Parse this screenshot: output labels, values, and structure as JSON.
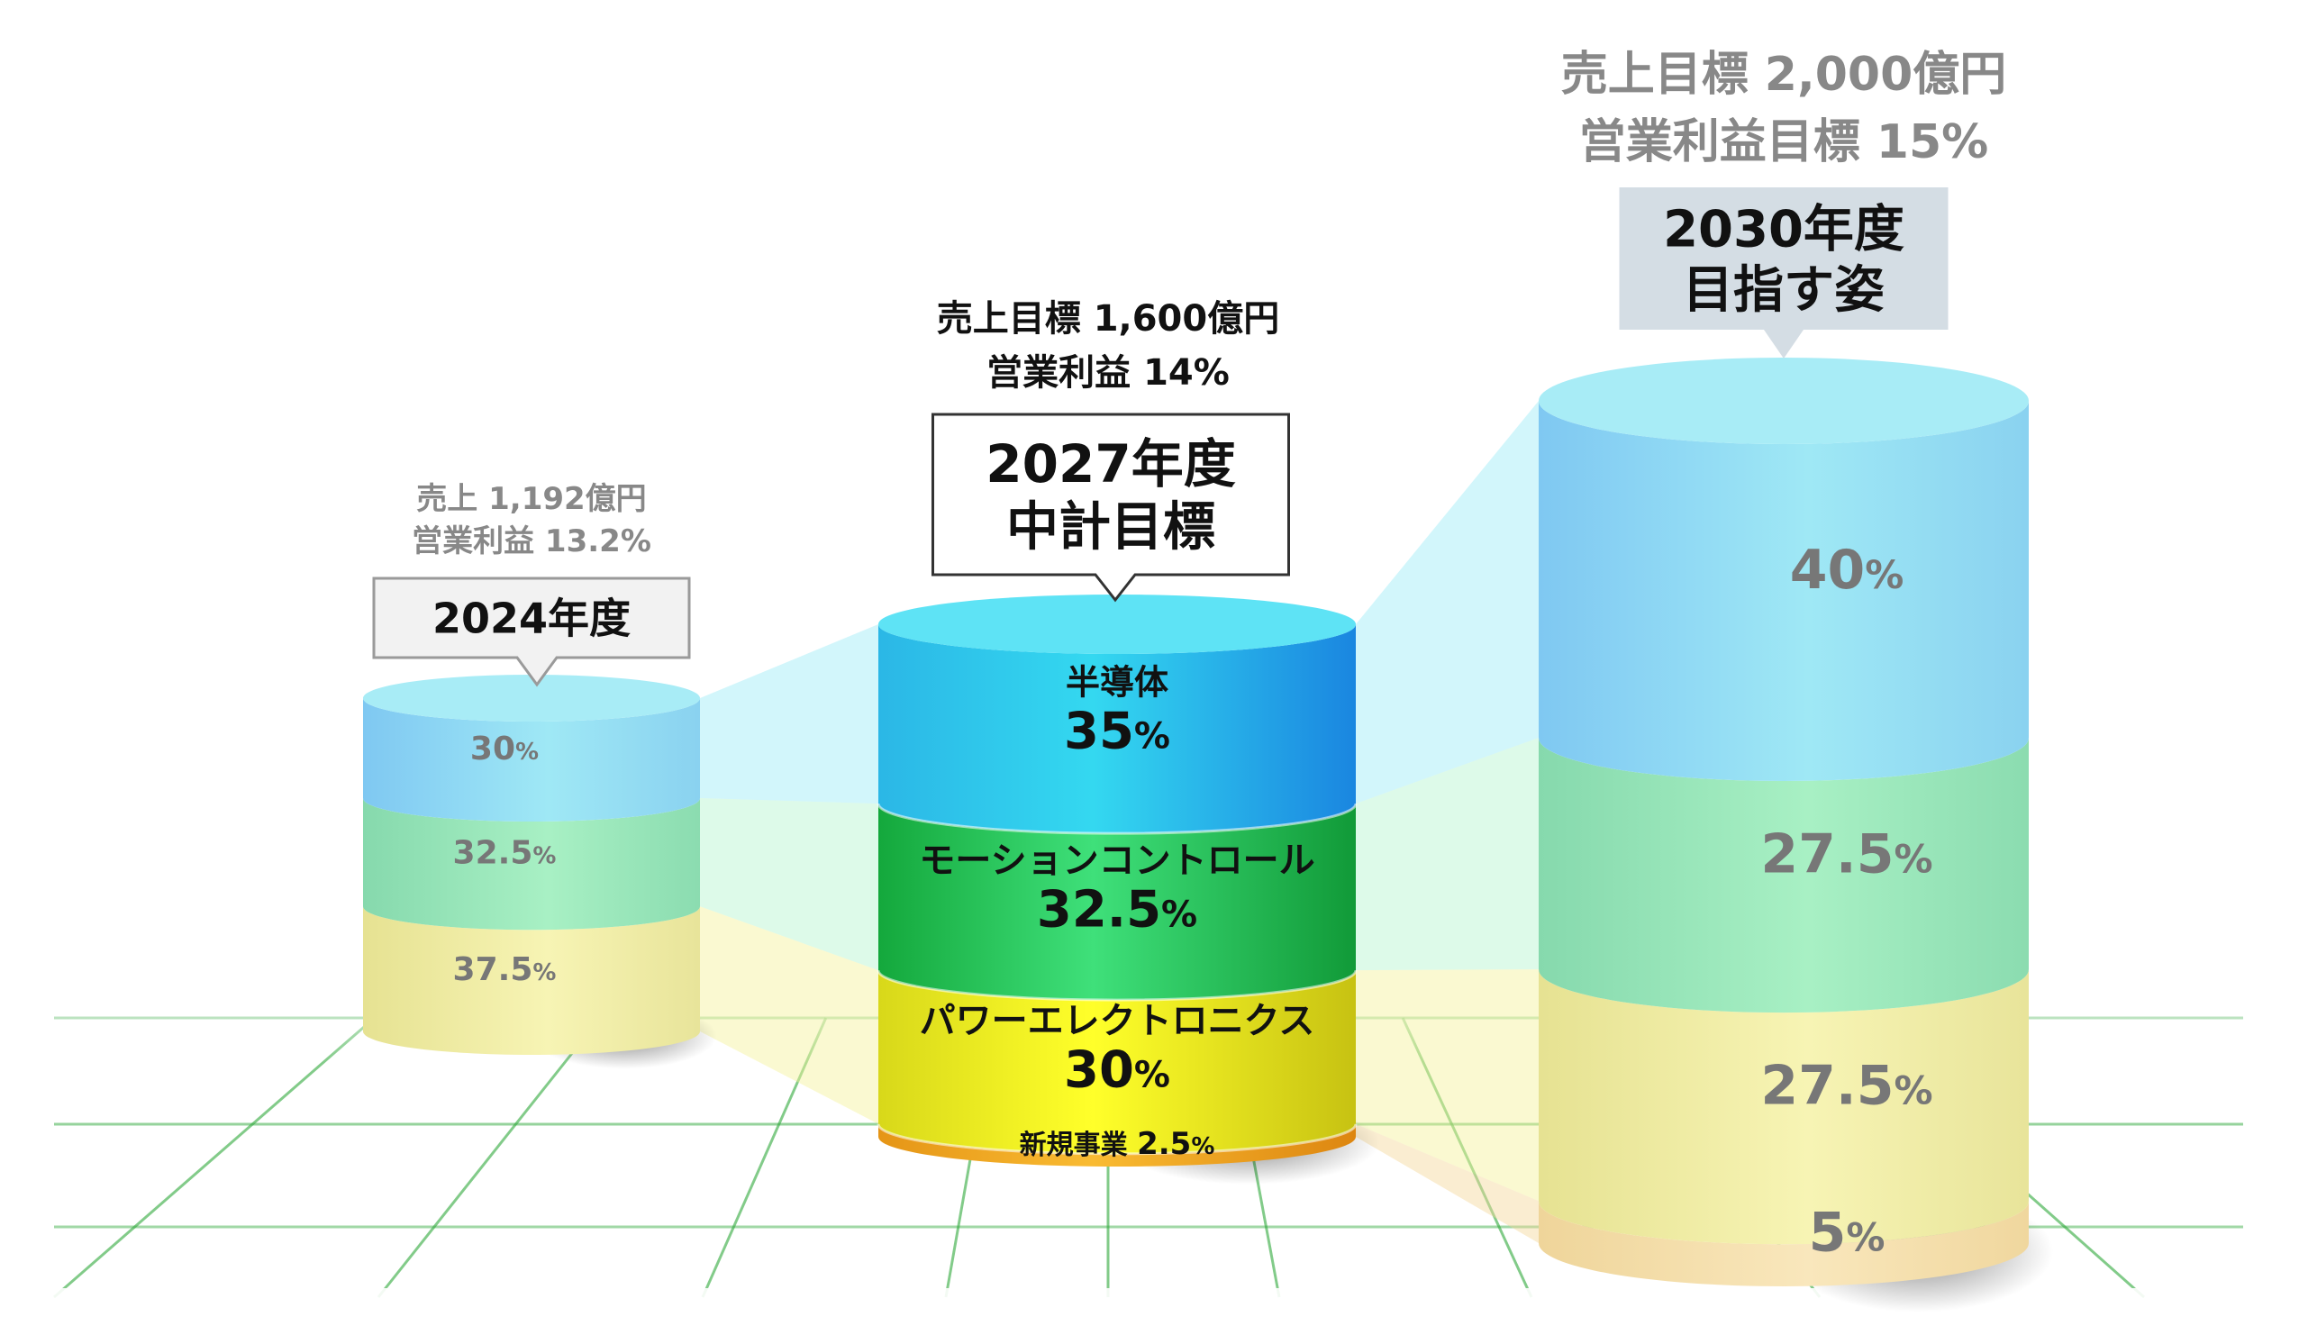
{
  "chart_data": {
    "type": "bar",
    "subtype": "stacked-cylinder",
    "series_order": [
      "semiconductor",
      "motion_control",
      "power_electronics",
      "new_business"
    ],
    "cylinders": [
      {
        "id": "fy2024",
        "label": "2024年度",
        "headline": [
          "売上 1,192億円",
          "営業利益 13.2%"
        ],
        "segments": [
          {
            "key": "power_electronics",
            "value": 37.5,
            "label": "37.5",
            "unit": "%"
          },
          {
            "key": "motion_control",
            "value": 32.5,
            "label": "32.5",
            "unit": "%"
          },
          {
            "key": "semiconductor",
            "value": 30,
            "label": "30",
            "unit": "%"
          }
        ]
      },
      {
        "id": "fy2027",
        "label": [
          "2027年度",
          "中計目標"
        ],
        "headline": [
          "売上目標 1,600億円",
          "営業利益 14%"
        ],
        "segments": [
          {
            "key": "new_business",
            "value": 2.5,
            "name": "新規事業",
            "label": "2.5",
            "unit": "%"
          },
          {
            "key": "power_electronics",
            "value": 30,
            "name": "パワーエレクトロニクス",
            "label": "30",
            "unit": "%"
          },
          {
            "key": "motion_control",
            "value": 32.5,
            "name": "モーションコントロール",
            "label": "32.5",
            "unit": "%"
          },
          {
            "key": "semiconductor",
            "value": 35,
            "name": "半導体",
            "label": "35",
            "unit": "%"
          }
        ]
      },
      {
        "id": "fy2030",
        "label": [
          "2030年度",
          "目指す姿"
        ],
        "headline": [
          "売上目標 2,000億円",
          "営業利益目標 15%"
        ],
        "segments": [
          {
            "key": "new_business",
            "value": 5,
            "label": "5",
            "unit": "%"
          },
          {
            "key": "power_electronics",
            "value": 27.5,
            "label": "27.5",
            "unit": "%"
          },
          {
            "key": "motion_control",
            "value": 27.5,
            "label": "27.5",
            "unit": "%"
          },
          {
            "key": "semiconductor",
            "value": 40,
            "label": "40",
            "unit": "%"
          }
        ]
      }
    ],
    "colors": {
      "semiconductor": "#3fc6ea",
      "motion_control": "#22c25a",
      "power_electronics": "#f2ee22",
      "new_business": "#f5a623",
      "semiconductor_pale": "#8fd8f2",
      "motion_control_pale": "#92e0b4",
      "power_electronics_pale": "#eeeb9c",
      "new_business_pale": "#f3dca6",
      "grid": "#2ea83a",
      "label_gray": "#777777"
    }
  }
}
